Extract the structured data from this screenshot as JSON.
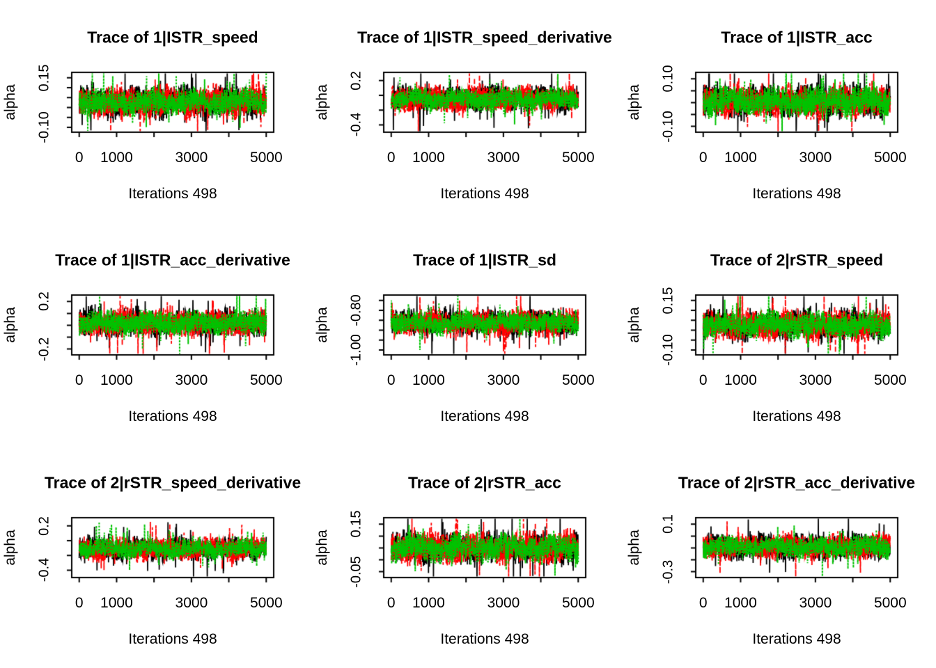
{
  "chart_data": {
    "type": "line",
    "subtype": "mcmc-trace-grid",
    "grid": {
      "rows": 3,
      "cols": 3
    },
    "background": "#ffffff",
    "axis_color": "#000000",
    "chains": [
      {
        "name": "chain-1",
        "color": "#000000",
        "line_style": "solid"
      },
      {
        "name": "chain-2",
        "color": "#ff0000",
        "line_style": "dashed"
      },
      {
        "name": "chain-3",
        "color": "#00c300",
        "line_style": "dotted"
      }
    ],
    "x": {
      "range": [
        0,
        5000
      ],
      "ticks": [
        {
          "v": 0,
          "label": "0"
        },
        {
          "v": 1000,
          "label": "1000"
        },
        {
          "v": 2000,
          "label": ""
        },
        {
          "v": 3000,
          "label": "3000"
        },
        {
          "v": 4000,
          "label": ""
        },
        {
          "v": 5000,
          "label": "5000"
        }
      ]
    },
    "panels": [
      {
        "title": "Trace of 1|ISTR_speed",
        "xlabel": "Iterations 498",
        "ylabel": "alpha",
        "y_box": [
          -0.125,
          0.1775
        ],
        "y_ticks": [
          {
            "v": -0.1,
            "label": "-0.10"
          },
          {
            "v": -0.05,
            "label": ""
          },
          {
            "v": 0.0,
            "label": ""
          },
          {
            "v": 0.05,
            "label": ""
          },
          {
            "v": 0.1,
            "label": ""
          },
          {
            "v": 0.15,
            "label": "0.15"
          }
        ],
        "trace_summary": {
          "center": 0.027,
          "half_width": 0.085,
          "points_per_chain": 1200,
          "seed": 1
        }
      },
      {
        "title": "Trace of 1|ISTR_speed_derivative",
        "xlabel": "Iterations 498",
        "ylabel": "alpha",
        "y_box": [
          -0.5,
          0.31
        ],
        "y_ticks": [
          {
            "v": -0.4,
            "label": "-0.4"
          },
          {
            "v": -0.2,
            "label": ""
          },
          {
            "v": 0.0,
            "label": ""
          },
          {
            "v": 0.2,
            "label": "0.2"
          }
        ],
        "trace_summary": {
          "center": -0.05,
          "half_width": 0.185,
          "points_per_chain": 1200,
          "seed": 2
        }
      },
      {
        "title": "Trace of 1|ISTR_acc",
        "xlabel": "Iterations 498",
        "ylabel": "alpha",
        "y_box": [
          -0.125,
          0.1275
        ],
        "y_ticks": [
          {
            "v": -0.1,
            "label": "-0.10"
          },
          {
            "v": -0.05,
            "label": ""
          },
          {
            "v": 0.0,
            "label": ""
          },
          {
            "v": 0.05,
            "label": ""
          },
          {
            "v": 0.1,
            "label": "0.10"
          }
        ],
        "trace_summary": {
          "center": 0.005,
          "half_width": 0.075,
          "points_per_chain": 1200,
          "seed": 3
        }
      },
      {
        "title": "Trace of 1|ISTR_acc_derivative",
        "xlabel": "Iterations 498",
        "ylabel": "alpha",
        "y_box": [
          -0.25,
          0.255
        ],
        "y_ticks": [
          {
            "v": -0.2,
            "label": "-0.2"
          },
          {
            "v": -0.1,
            "label": ""
          },
          {
            "v": 0.0,
            "label": ""
          },
          {
            "v": 0.1,
            "label": ""
          },
          {
            "v": 0.2,
            "label": "0.2"
          }
        ],
        "trace_summary": {
          "center": 0.02,
          "half_width": 0.125,
          "points_per_chain": 1200,
          "seed": 4
        }
      },
      {
        "title": "Trace of 1|ISTR_sd",
        "xlabel": "Iterations 498",
        "ylabel": "alpha",
        "y_box": [
          -1.025,
          -0.7225
        ],
        "y_ticks": [
          {
            "v": -1.0,
            "label": "-1.00"
          },
          {
            "v": -0.95,
            "label": ""
          },
          {
            "v": -0.9,
            "label": ""
          },
          {
            "v": -0.85,
            "label": ""
          },
          {
            "v": -0.8,
            "label": "-0.80"
          },
          {
            "v": -0.75,
            "label": ""
          }
        ],
        "trace_summary": {
          "center": -0.8625,
          "half_width": 0.07,
          "points_per_chain": 1200,
          "seed": 5
        }
      },
      {
        "title": "Trace of 2|rSTR_speed",
        "xlabel": "Iterations 498",
        "ylabel": "alpha",
        "y_box": [
          -0.125,
          0.1775
        ],
        "y_ticks": [
          {
            "v": -0.1,
            "label": "-0.10"
          },
          {
            "v": -0.05,
            "label": ""
          },
          {
            "v": 0.0,
            "label": ""
          },
          {
            "v": 0.05,
            "label": ""
          },
          {
            "v": 0.1,
            "label": ""
          },
          {
            "v": 0.15,
            "label": "0.15"
          }
        ],
        "trace_summary": {
          "center": 0.027,
          "half_width": 0.082,
          "points_per_chain": 1200,
          "seed": 6
        }
      },
      {
        "title": "Trace of 2|rSTR_speed_derivative",
        "xlabel": "Iterations 498",
        "ylabel": "alpha",
        "y_box": [
          -0.5,
          0.31
        ],
        "y_ticks": [
          {
            "v": -0.4,
            "label": "-0.4"
          },
          {
            "v": -0.2,
            "label": ""
          },
          {
            "v": 0.0,
            "label": ""
          },
          {
            "v": 0.2,
            "label": "0.2"
          }
        ],
        "trace_summary": {
          "center": -0.11,
          "half_width": 0.165,
          "points_per_chain": 1200,
          "seed": 7
        }
      },
      {
        "title": "Trace of 2|rSTR_acc",
        "xlabel": "Iterations 498",
        "ylabel": "alpha",
        "y_box": [
          -0.075,
          0.1775
        ],
        "y_ticks": [
          {
            "v": -0.05,
            "label": "-0.05"
          },
          {
            "v": 0.0,
            "label": ""
          },
          {
            "v": 0.05,
            "label": ""
          },
          {
            "v": 0.1,
            "label": ""
          },
          {
            "v": 0.15,
            "label": "0.15"
          }
        ],
        "trace_summary": {
          "center": 0.05,
          "half_width": 0.072,
          "points_per_chain": 1200,
          "seed": 8
        }
      },
      {
        "title": "Trace of 2|rSTR_acc_derivative",
        "xlabel": "Iterations 498",
        "ylabel": "alpha",
        "y_box": [
          -0.35,
          0.155
        ],
        "y_ticks": [
          {
            "v": -0.3,
            "label": "-0.3"
          },
          {
            "v": -0.2,
            "label": ""
          },
          {
            "v": -0.1,
            "label": ""
          },
          {
            "v": 0.0,
            "label": ""
          },
          {
            "v": 0.1,
            "label": "0.1"
          }
        ],
        "trace_summary": {
          "center": -0.09,
          "half_width": 0.115,
          "points_per_chain": 1200,
          "seed": 9
        }
      }
    ]
  }
}
